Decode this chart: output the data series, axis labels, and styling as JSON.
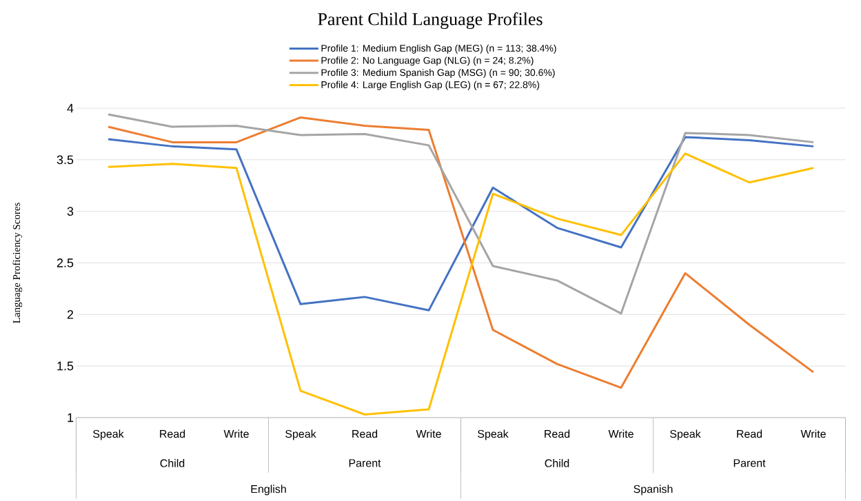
{
  "chart_data": {
    "type": "line",
    "title": "Parent Child Language Profiles",
    "ylabel": "Language Proficiency Scores",
    "categories": [
      "Speak",
      "Read",
      "Write",
      "Speak",
      "Read",
      "Write",
      "Speak",
      "Read",
      "Write",
      "Speak",
      "Read",
      "Write"
    ],
    "series": [
      {
        "name": "Profile 1: Medium English Gap (MEG) (n =  113; 38.4%)",
        "color": "#4472c4",
        "values": [
          3.7,
          3.63,
          3.6,
          2.1,
          2.17,
          2.04,
          3.23,
          2.84,
          2.65,
          3.72,
          3.69,
          3.63
        ]
      },
      {
        "name": "Profile 2: No Language Gap (NLG) (n = 24; 8.2%)",
        "color": "#ed7d31",
        "values": [
          3.82,
          3.67,
          3.67,
          3.91,
          3.83,
          3.79,
          1.85,
          1.52,
          1.29,
          2.4,
          1.9,
          1.44
        ]
      },
      {
        "name": "Profile 3: Medium Spanish Gap (MSG)  (n = 90; 30.6%)",
        "color": "#a5a5a5",
        "values": [
          3.94,
          3.82,
          3.83,
          3.74,
          3.75,
          3.64,
          2.47,
          2.33,
          2.01,
          3.76,
          3.74,
          3.67
        ]
      },
      {
        "name": "Profile 4: Large English Gap (LEG) (n = 67; 22.8%)",
        "color": "#ffc000",
        "values": [
          3.43,
          3.46,
          3.42,
          1.26,
          1.03,
          1.08,
          3.17,
          2.93,
          2.77,
          3.56,
          3.28,
          3.42
        ]
      }
    ],
    "annotations": [
      "Child",
      "Parent",
      "Child",
      "Parent",
      "English",
      "Spanish"
    ],
    "ylim": [
      1,
      4
    ],
    "yticks": [
      1,
      1.5,
      2,
      2.5,
      3,
      3.5,
      4
    ],
    "grid": "y",
    "legend": "top",
    "marker": "none",
    "line_style": "solid"
  }
}
